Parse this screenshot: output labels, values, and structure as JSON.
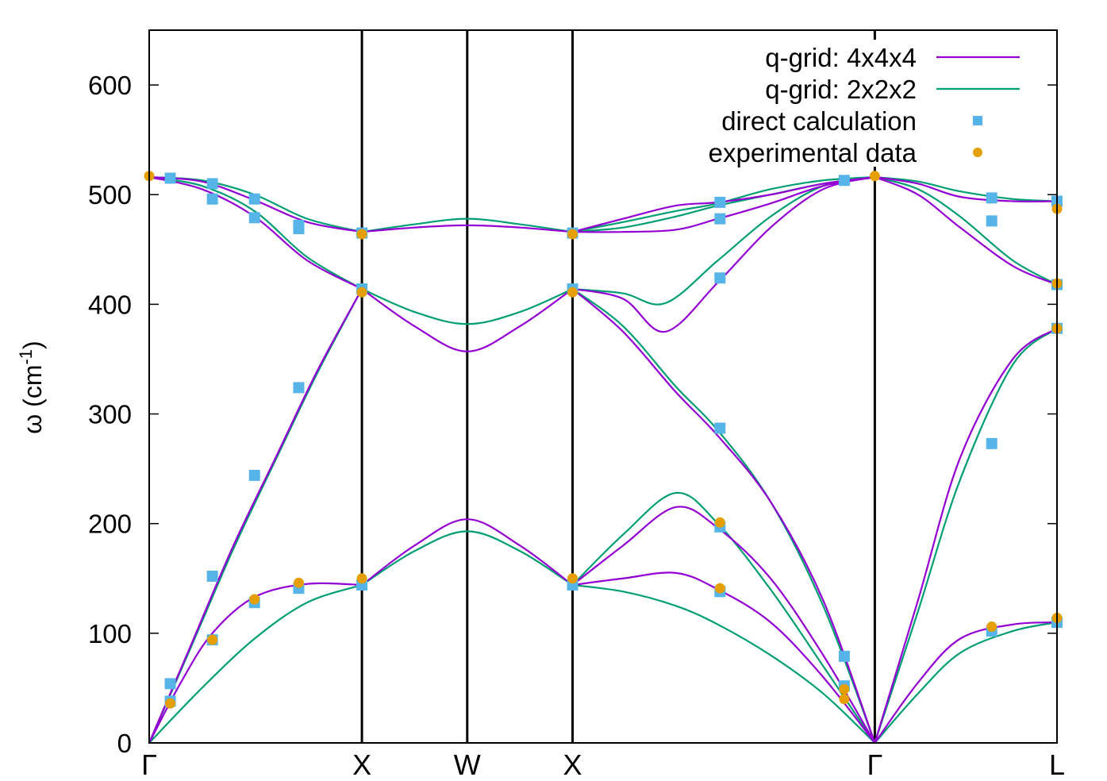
{
  "chart_data": {
    "type": "line",
    "title": "",
    "xlabel": "",
    "ylabel": "ω (cm",
    "ylabel_superscript": "-1",
    "ylabel_close": ")",
    "ylim": [
      0,
      650
    ],
    "yticks": [
      0,
      100,
      200,
      300,
      400,
      500,
      600
    ],
    "xlim": [
      0,
      8.62
    ],
    "high_symmetry_points": [
      {
        "label": "Γ",
        "x": 0
      },
      {
        "label": "X",
        "x": 2.02
      },
      {
        "label": "W",
        "x": 3.02
      },
      {
        "label": "X",
        "x": 4.02
      },
      {
        "label": "Γ",
        "x": 6.89
      },
      {
        "label": "L",
        "x": 8.62
      }
    ],
    "legend_position": "top-right",
    "colors": {
      "q444": "#9400d3",
      "q222": "#009e73",
      "direct": "#56b4e9",
      "experimental": "#e69f00",
      "axes": "#000000"
    },
    "series": [
      {
        "name": "q-grid: 4x4x4",
        "kind": "line",
        "color_key": "q444",
        "branches": [
          {
            "x": [
              0,
              0.3,
              0.6,
              1.0,
              1.5,
              2.02
            ],
            "y": [
              0,
              55,
              100,
              133,
              145,
              144
            ]
          },
          {
            "x": [
              0,
              0.4,
              0.8,
              1.2,
              1.6,
              2.02
            ],
            "y": [
              0,
              90,
              180,
              260,
              340,
              414
            ]
          },
          {
            "x": [
              0,
              0.5,
              1.0,
              1.5,
              2.02
            ],
            "y": [
              516,
              505,
              480,
              440,
              414
            ]
          },
          {
            "x": [
              0,
              0.5,
              1.0,
              1.5,
              2.02
            ],
            "y": [
              516,
              512,
              495,
              475,
              466
            ]
          },
          {
            "x": [
              2.02,
              2.52,
              3.02,
              3.52,
              4.02
            ],
            "y": [
              144,
              180,
              204,
              180,
              144
            ]
          },
          {
            "x": [
              2.02,
              2.52,
              3.02,
              3.52,
              4.02
            ],
            "y": [
              414,
              380,
              357,
              380,
              414
            ]
          },
          {
            "x": [
              2.02,
              2.52,
              3.02,
              3.52,
              4.02
            ],
            "y": [
              466,
              470,
              472,
              470,
              466
            ]
          },
          {
            "x": [
              4.02,
              4.5,
              5.0,
              5.4,
              5.9,
              6.4,
              6.89
            ],
            "y": [
              144,
              150,
              155,
              140,
              110,
              60,
              0
            ]
          },
          {
            "x": [
              4.02,
              4.5,
              5.0,
              5.4,
              5.9,
              6.4,
              6.89
            ],
            "y": [
              144,
              180,
              215,
              196,
              150,
              80,
              0
            ]
          },
          {
            "x": [
              4.02,
              4.5,
              5.0,
              5.4,
              5.9,
              6.4,
              6.89
            ],
            "y": [
              414,
              375,
              320,
              280,
              220,
              130,
              0
            ]
          },
          {
            "x": [
              4.02,
              4.5,
              4.9,
              5.4,
              5.9,
              6.4,
              6.89
            ],
            "y": [
              414,
              405,
              375,
              420,
              470,
              505,
              516
            ]
          },
          {
            "x": [
              4.02,
              4.5,
              5.0,
              5.4,
              5.9,
              6.4,
              6.89
            ],
            "y": [
              466,
              466,
              468,
              478,
              492,
              508,
              516
            ]
          },
          {
            "x": [
              4.02,
              4.5,
              5.0,
              5.4,
              5.9,
              6.4,
              6.89
            ],
            "y": [
              466,
              478,
              490,
              493,
              500,
              510,
              516
            ]
          },
          {
            "x": [
              6.89,
              7.3,
              7.7,
              8.2,
              8.62
            ],
            "y": [
              0,
              55,
              95,
              108,
              110
            ]
          },
          {
            "x": [
              6.89,
              7.3,
              7.7,
              8.2,
              8.62
            ],
            "y": [
              0,
              130,
              260,
              350,
              378
            ]
          },
          {
            "x": [
              6.89,
              7.3,
              7.7,
              8.2,
              8.62
            ],
            "y": [
              516,
              500,
              470,
              435,
              418
            ]
          },
          {
            "x": [
              6.89,
              7.3,
              7.7,
              8.2,
              8.62
            ],
            "y": [
              516,
              510,
              498,
              494,
              494
            ]
          }
        ]
      },
      {
        "name": "q-grid: 2x2x2",
        "kind": "line",
        "color_key": "q222",
        "branches": [
          {
            "x": [
              0,
              0.5,
              1.0,
              1.5,
              2.02
            ],
            "y": [
              0,
              50,
              95,
              128,
              144
            ]
          },
          {
            "x": [
              0,
              0.4,
              0.8,
              1.2,
              1.6,
              2.02
            ],
            "y": [
              0,
              88,
              177,
              258,
              338,
              414
            ]
          },
          {
            "x": [
              0,
              0.5,
              1.0,
              1.5,
              2.02
            ],
            "y": [
              516,
              508,
              485,
              443,
              414
            ]
          },
          {
            "x": [
              0,
              0.5,
              1.0,
              1.5,
              2.02
            ],
            "y": [
              516,
              513,
              500,
              478,
              466
            ]
          },
          {
            "x": [
              2.02,
              2.52,
              3.02,
              3.52,
              4.02
            ],
            "y": [
              144,
              175,
              193,
              175,
              144
            ]
          },
          {
            "x": [
              2.02,
              2.52,
              3.02,
              3.52,
              4.02
            ],
            "y": [
              414,
              393,
              382,
              393,
              414
            ]
          },
          {
            "x": [
              2.02,
              2.52,
              3.02,
              3.52,
              4.02
            ],
            "y": [
              466,
              473,
              478,
              473,
              466
            ]
          },
          {
            "x": [
              4.02,
              4.5,
              5.0,
              5.4,
              5.9,
              6.4,
              6.89
            ],
            "y": [
              144,
              138,
              125,
              108,
              80,
              45,
              0
            ]
          },
          {
            "x": [
              4.02,
              4.5,
              5.0,
              5.4,
              5.9,
              6.4,
              6.89
            ],
            "y": [
              144,
              190,
              228,
              200,
              140,
              70,
              0
            ]
          },
          {
            "x": [
              4.02,
              4.5,
              5.0,
              5.4,
              5.9,
              6.4,
              6.89
            ],
            "y": [
              414,
              380,
              325,
              285,
              220,
              125,
              0
            ]
          },
          {
            "x": [
              4.02,
              4.5,
              4.9,
              5.4,
              5.9,
              6.4,
              6.89
            ],
            "y": [
              414,
              410,
              401,
              440,
              480,
              508,
              516
            ]
          },
          {
            "x": [
              4.02,
              4.5,
              5.0,
              5.4,
              5.9,
              6.4,
              6.89
            ],
            "y": [
              466,
              470,
              480,
              490,
              500,
              510,
              516
            ]
          },
          {
            "x": [
              4.02,
              4.5,
              5.0,
              5.4,
              5.9,
              6.4,
              6.89
            ],
            "y": [
              466,
              475,
              485,
              492,
              505,
              513,
              516
            ]
          },
          {
            "x": [
              6.89,
              7.3,
              7.7,
              8.2,
              8.62
            ],
            "y": [
              0,
              45,
              82,
              102,
              110
            ]
          },
          {
            "x": [
              6.89,
              7.3,
              7.7,
              8.2,
              8.62
            ],
            "y": [
              0,
              120,
              240,
              345,
              378
            ]
          },
          {
            "x": [
              6.89,
              7.3,
              7.7,
              8.2,
              8.62
            ],
            "y": [
              516,
              505,
              480,
              440,
              418
            ]
          },
          {
            "x": [
              6.89,
              7.3,
              7.7,
              8.2,
              8.62
            ],
            "y": [
              516,
              512,
              503,
              496,
              494
            ]
          }
        ]
      },
      {
        "name": "direct calculation",
        "kind": "scatter",
        "marker": "square",
        "color_key": "direct",
        "points": [
          [
            0.2,
            54
          ],
          [
            0.2,
            38
          ],
          [
            0.2,
            515
          ],
          [
            0.6,
            152
          ],
          [
            0.6,
            94
          ],
          [
            0.6,
            510
          ],
          [
            0.6,
            496
          ],
          [
            1.0,
            244
          ],
          [
            1.0,
            128
          ],
          [
            1.0,
            496
          ],
          [
            1.0,
            479
          ],
          [
            1.42,
            324
          ],
          [
            1.42,
            141
          ],
          [
            1.42,
            472
          ],
          [
            1.42,
            469
          ],
          [
            2.02,
            414
          ],
          [
            2.02,
            465
          ],
          [
            2.02,
            144
          ],
          [
            4.02,
            414
          ],
          [
            4.02,
            465
          ],
          [
            4.02,
            144
          ],
          [
            5.42,
            493
          ],
          [
            5.42,
            478
          ],
          [
            5.42,
            424
          ],
          [
            5.42,
            287
          ],
          [
            5.42,
            197
          ],
          [
            5.42,
            138
          ],
          [
            6.6,
            513
          ],
          [
            6.6,
            79
          ],
          [
            6.6,
            52
          ],
          [
            8.0,
            497
          ],
          [
            8.0,
            476
          ],
          [
            8.0,
            273
          ],
          [
            8.0,
            102
          ],
          [
            8.62,
            494
          ],
          [
            8.62,
            418
          ],
          [
            8.62,
            378
          ],
          [
            8.62,
            110
          ]
        ]
      },
      {
        "name": "experimental data",
        "kind": "scatter",
        "marker": "circle",
        "color_key": "experimental",
        "points": [
          [
            0,
            517
          ],
          [
            0.2,
            36
          ],
          [
            0.6,
            94
          ],
          [
            1.0,
            131
          ],
          [
            1.42,
            146
          ],
          [
            2.02,
            411
          ],
          [
            2.02,
            464
          ],
          [
            2.02,
            150
          ],
          [
            4.02,
            411
          ],
          [
            4.02,
            464
          ],
          [
            4.02,
            150
          ],
          [
            5.42,
            201
          ],
          [
            5.42,
            141
          ],
          [
            6.6,
            40
          ],
          [
            6.6,
            49
          ],
          [
            6.89,
            517
          ],
          [
            8.0,
            106
          ],
          [
            8.62,
            487
          ],
          [
            8.62,
            419
          ],
          [
            8.62,
            378
          ],
          [
            8.62,
            114
          ]
        ]
      }
    ]
  }
}
